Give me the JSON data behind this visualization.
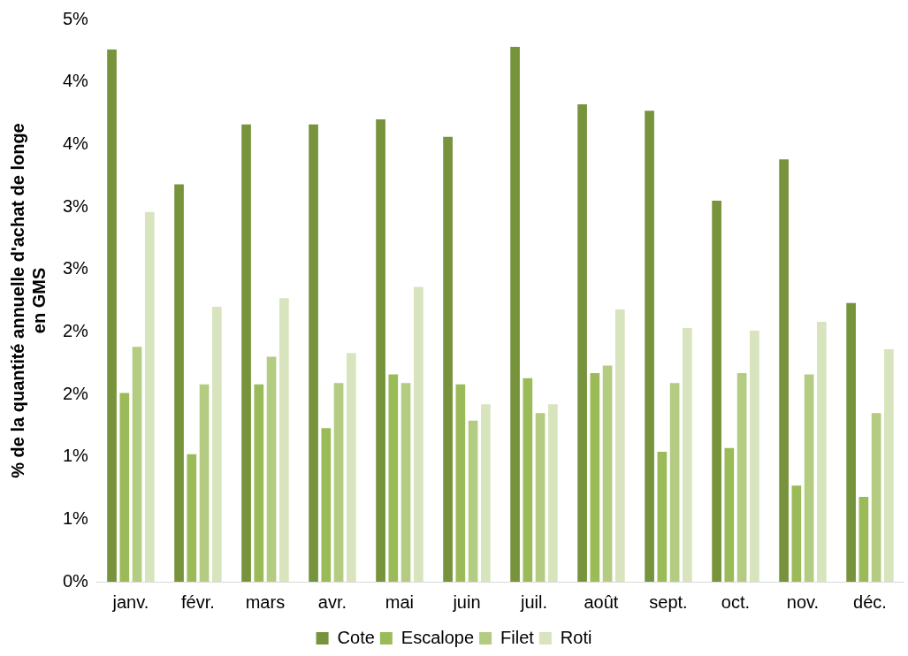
{
  "chart_data": {
    "type": "bar",
    "ylabel": "% de la quantité annuelle d'achat de longe en GMS",
    "categories": [
      "janv.",
      "févr.",
      "mars",
      "avr.",
      "mai",
      "juin",
      "juil.",
      "août",
      "sept.",
      "oct.",
      "nov.",
      "déc."
    ],
    "series": [
      {
        "name": "Cote",
        "color": "#77933c",
        "values": [
          4.26,
          3.18,
          3.66,
          3.66,
          3.7,
          3.56,
          4.28,
          3.82,
          3.77,
          3.05,
          3.38,
          2.23
        ]
      },
      {
        "name": "Escalope",
        "color": "#9bbb59",
        "values": [
          1.51,
          1.02,
          1.58,
          1.23,
          1.66,
          1.58,
          1.63,
          1.67,
          1.04,
          1.07,
          0.77,
          0.68
        ]
      },
      {
        "name": "Filet",
        "color": "#b3cc82",
        "values": [
          1.88,
          1.58,
          1.8,
          1.59,
          1.59,
          1.29,
          1.35,
          1.73,
          1.59,
          1.67,
          1.66,
          1.35
        ]
      },
      {
        "name": "Roti",
        "color": "#d7e4bd",
        "values": [
          2.96,
          2.2,
          2.27,
          1.83,
          2.36,
          1.42,
          1.42,
          2.18,
          2.03,
          2.01,
          2.08,
          1.86
        ]
      }
    ],
    "ylim": [
      0,
      4.5
    ],
    "yticks": [
      {
        "value": 0,
        "label": "0%"
      },
      {
        "value": 0.5,
        "label": "1%"
      },
      {
        "value": 1,
        "label": "1%"
      },
      {
        "value": 1.5,
        "label": "2%"
      },
      {
        "value": 2,
        "label": "2%"
      },
      {
        "value": 2.5,
        "label": "3%"
      },
      {
        "value": 3,
        "label": "3%"
      },
      {
        "value": 3.5,
        "label": "4%"
      },
      {
        "value": 4,
        "label": "4%"
      },
      {
        "value": 4.5,
        "label": "5%"
      }
    ],
    "grid": false,
    "legend": "bottom"
  }
}
